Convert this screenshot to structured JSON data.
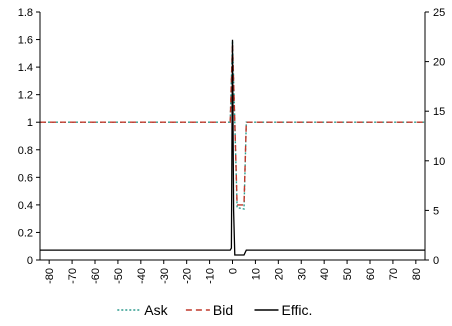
{
  "chart_data": {
    "type": "line",
    "x_ticks": [
      -80,
      -70,
      -60,
      -50,
      -40,
      -30,
      -20,
      -10,
      0,
      10,
      20,
      30,
      40,
      50,
      60,
      70,
      80
    ],
    "xlim": [
      -84,
      84
    ],
    "y_left": {
      "ticks": [
        0,
        0.2,
        0.4,
        0.6,
        0.8,
        1,
        1.2,
        1.4,
        1.6,
        1.8
      ],
      "tick_labels": [
        "0",
        "0.2",
        "0.4",
        "0.6",
        "0.8",
        "1",
        "1.2",
        "1.4",
        "1.6",
        "1.8"
      ],
      "ylim": [
        0,
        1.8
      ]
    },
    "y_right": {
      "ticks": [
        0,
        5,
        10,
        15,
        20,
        25
      ],
      "tick_labels": [
        "0",
        "5",
        "10",
        "15",
        "20",
        "25"
      ],
      "ylim": [
        0,
        25
      ]
    },
    "legend_position": "bottom",
    "grid": false,
    "series": [
      {
        "name": "Ask",
        "axis": "left",
        "color": "#2e9c8e",
        "dash": "2,2",
        "points": [
          [
            -84,
            1.0
          ],
          [
            -1,
            1.0
          ],
          [
            0,
            1.59
          ],
          [
            1,
            1.0
          ],
          [
            2,
            0.38
          ],
          [
            5,
            0.37
          ],
          [
            6,
            1.0
          ],
          [
            84,
            1.0
          ]
        ]
      },
      {
        "name": "Bid",
        "axis": "left",
        "color": "#c0392b",
        "dash": "6,4",
        "points": [
          [
            -84,
            1.0
          ],
          [
            -1,
            1.0
          ],
          [
            0,
            1.57
          ],
          [
            1,
            1.0
          ],
          [
            2,
            0.4
          ],
          [
            5,
            0.4
          ],
          [
            6,
            1.0
          ],
          [
            84,
            1.0
          ]
        ]
      },
      {
        "name": "Effic.",
        "axis": "right",
        "color": "#000000",
        "dash": "",
        "points": [
          [
            -84,
            1.0
          ],
          [
            -1,
            1.0
          ],
          [
            -0.5,
            1.2
          ],
          [
            0,
            22.2
          ],
          [
            0.5,
            5.0
          ],
          [
            1,
            0.5
          ],
          [
            5,
            0.5
          ],
          [
            6,
            1.0
          ],
          [
            84,
            1.0
          ]
        ]
      }
    ]
  }
}
